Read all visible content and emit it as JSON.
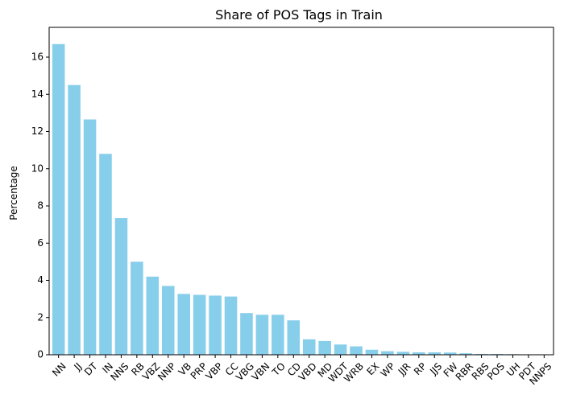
{
  "chart_data": {
    "type": "bar",
    "title": "Share of POS Tags in Train",
    "xlabel": "",
    "ylabel": "Percentage",
    "categories": [
      "NN",
      "JJ",
      "DT",
      "IN",
      "NNS",
      "RB",
      "VBZ",
      "NNP",
      "VB",
      "PRP",
      "VBP",
      "CC",
      "VBG",
      "VBN",
      "TO",
      "CD",
      "VBD",
      "MD",
      "WDT",
      "WRB",
      "EX",
      "WP",
      "JJR",
      "RP",
      "JJS",
      "FW",
      "RBR",
      "RBS",
      "POS",
      "UH",
      "PDT",
      "NNPS"
    ],
    "values": [
      16.7,
      14.5,
      12.65,
      10.8,
      7.35,
      5.0,
      4.2,
      3.7,
      3.27,
      3.22,
      3.18,
      3.13,
      2.24,
      2.15,
      2.15,
      1.85,
      0.83,
      0.74,
      0.55,
      0.45,
      0.27,
      0.19,
      0.16,
      0.13,
      0.13,
      0.12,
      0.08,
      0.04,
      0.04,
      0.03,
      0.02,
      0.01
    ],
    "ylim": [
      0,
      17.6
    ],
    "yticks": [
      0,
      2,
      4,
      6,
      8,
      10,
      12,
      14,
      16
    ],
    "bar_color": "#87ceeb",
    "grid": false,
    "legend": "none"
  }
}
